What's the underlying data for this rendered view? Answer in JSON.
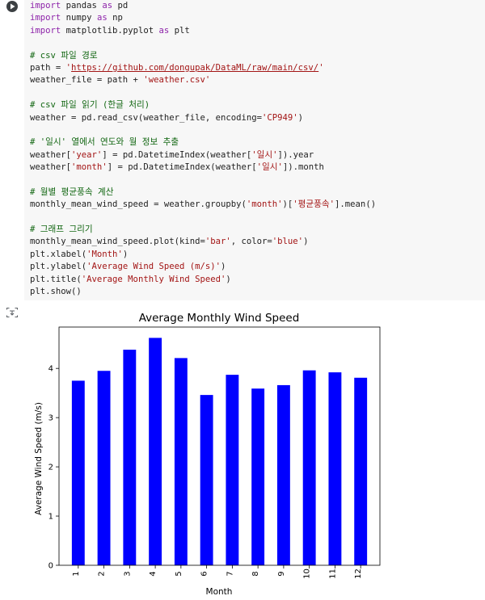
{
  "code_cell": {
    "lines": [
      [
        {
          "t": "import",
          "c": "kw"
        },
        {
          "t": " pandas "
        },
        {
          "t": "as",
          "c": "kw"
        },
        {
          "t": " pd"
        }
      ],
      [
        {
          "t": "import",
          "c": "kw"
        },
        {
          "t": " numpy "
        },
        {
          "t": "as",
          "c": "kw"
        },
        {
          "t": " np"
        }
      ],
      [
        {
          "t": "import",
          "c": "kw"
        },
        {
          "t": " matplotlib.pyplot "
        },
        {
          "t": "as",
          "c": "kw"
        },
        {
          "t": " plt"
        }
      ],
      [],
      [
        {
          "t": "# csv 파일 경로",
          "c": "cm"
        }
      ],
      [
        {
          "t": "path = "
        },
        {
          "t": "'",
          "c": "str"
        },
        {
          "t": "https://github.com/dongupak/DataML/raw/main/csv/",
          "c": "url"
        },
        {
          "t": "'",
          "c": "str"
        }
      ],
      [
        {
          "t": "weather_file = path + "
        },
        {
          "t": "'weather.csv'",
          "c": "str"
        }
      ],
      [],
      [
        {
          "t": "# csv 파일 읽기 (한글 처리)",
          "c": "cm"
        }
      ],
      [
        {
          "t": "weather = pd.read_csv(weather_file, encoding="
        },
        {
          "t": "'CP949'",
          "c": "str"
        },
        {
          "t": ")"
        }
      ],
      [],
      [
        {
          "t": "# '일시' 열에서 연도와 월 정보 추출",
          "c": "cm"
        }
      ],
      [
        {
          "t": "weather["
        },
        {
          "t": "'year'",
          "c": "str"
        },
        {
          "t": "] = pd.DatetimeIndex(weather["
        },
        {
          "t": "'일시'",
          "c": "str"
        },
        {
          "t": "]).year"
        }
      ],
      [
        {
          "t": "weather["
        },
        {
          "t": "'month'",
          "c": "str"
        },
        {
          "t": "] = pd.DatetimeIndex(weather["
        },
        {
          "t": "'일시'",
          "c": "str"
        },
        {
          "t": "]).month"
        }
      ],
      [],
      [
        {
          "t": "# 월별 평균풍속 계산",
          "c": "cm"
        }
      ],
      [
        {
          "t": "monthly_mean_wind_speed = weather.groupby("
        },
        {
          "t": "'month'",
          "c": "str"
        },
        {
          "t": ")["
        },
        {
          "t": "'평균풍속'",
          "c": "str"
        },
        {
          "t": "].mean()"
        }
      ],
      [],
      [
        {
          "t": "# 그래프 그리기",
          "c": "cm"
        }
      ],
      [
        {
          "t": "monthly_mean_wind_speed.plot(kind="
        },
        {
          "t": "'bar'",
          "c": "str"
        },
        {
          "t": ", color="
        },
        {
          "t": "'blue'",
          "c": "str"
        },
        {
          "t": ")"
        }
      ],
      [
        {
          "t": "plt.xlabel("
        },
        {
          "t": "'Month'",
          "c": "str"
        },
        {
          "t": ")"
        }
      ],
      [
        {
          "t": "plt.ylabel("
        },
        {
          "t": "'Average Wind Speed (m/s)'",
          "c": "str"
        },
        {
          "t": ")"
        }
      ],
      [
        {
          "t": "plt.title("
        },
        {
          "t": "'Average Monthly Wind Speed'",
          "c": "str"
        },
        {
          "t": ")"
        }
      ],
      [
        {
          "t": "plt.show()"
        }
      ]
    ]
  },
  "chart_data": {
    "type": "bar",
    "title": "Average Monthly Wind Speed",
    "xlabel": "Month",
    "ylabel": "Average Wind Speed (m/s)",
    "categories": [
      "1",
      "2",
      "3",
      "4",
      "5",
      "6",
      "7",
      "8",
      "9",
      "10",
      "11",
      "12"
    ],
    "values": [
      3.75,
      3.95,
      4.38,
      4.62,
      4.21,
      3.46,
      3.87,
      3.59,
      3.66,
      3.96,
      3.92,
      3.81
    ],
    "ylim": [
      0,
      4.84
    ],
    "yticks": [
      "0",
      "1",
      "2",
      "3",
      "4"
    ],
    "color": "#0000ff",
    "grid": false,
    "legend": "none"
  }
}
